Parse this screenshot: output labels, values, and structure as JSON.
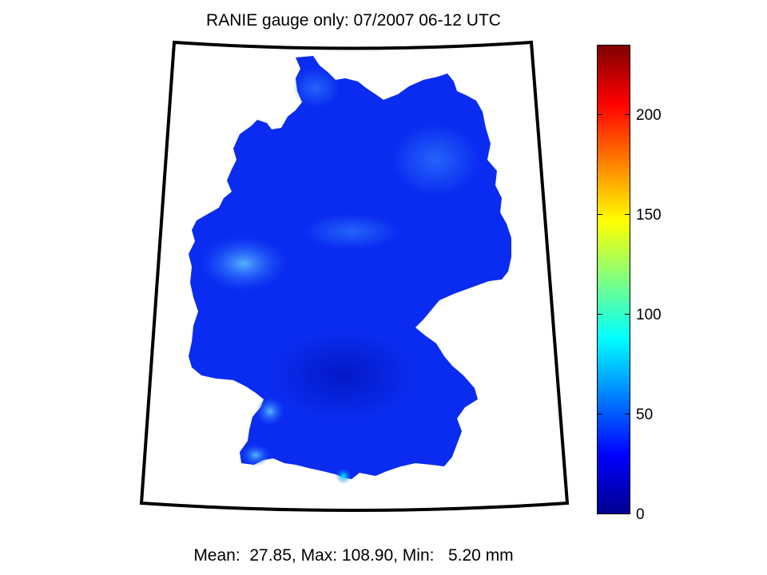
{
  "title": "RANIE gauge only: 07/2007 06-12 UTC",
  "stats": "Mean:  27.85, Max: 108.90, Min:   5.20 mm",
  "colorbar": {
    "min": 0,
    "max": 235,
    "ticks": [
      "0",
      "50",
      "100",
      "150",
      "200"
    ],
    "colormap": "jet"
  },
  "map": {
    "region": "Germany",
    "fill_color": "#0a2cf0",
    "frame_color": "#000000",
    "highlights": [
      {
        "area": "west",
        "color": "#4aa8ff"
      },
      {
        "area": "south-west",
        "color": "#3d9bff"
      },
      {
        "area": "south",
        "color": "#00e5ff"
      }
    ]
  }
}
